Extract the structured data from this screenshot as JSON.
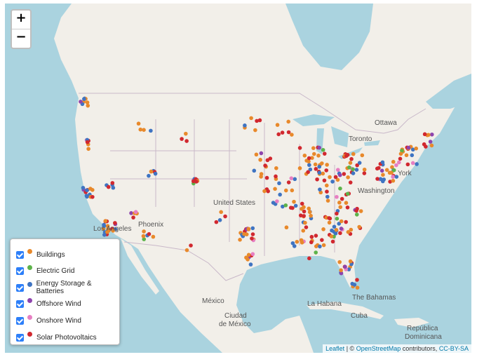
{
  "zoom": {
    "in": "+",
    "out": "−"
  },
  "legend": [
    {
      "label": "Buildings",
      "color": "#e8892b"
    },
    {
      "label": "Electric Grid",
      "color": "#5db34a"
    },
    {
      "label": "Energy Storage & Batteries",
      "color": "#3f74c2"
    },
    {
      "label": "Offshore Wind",
      "color": "#8e44ad"
    },
    {
      "label": "Onshore Wind",
      "color": "#e77fc2"
    },
    {
      "label": "Solar Photovoltaics",
      "color": "#d1282f"
    }
  ],
  "places": {
    "ottawa": "Ottawa",
    "toronto": "Toronto",
    "york": "York",
    "washington": "Washington",
    "united_states": "United States",
    "los_angeles": "Los Angeles",
    "phoenix": "Phoenix",
    "mexico": "México",
    "ciudad1": "Ciudad",
    "ciudad2": "de México",
    "habana": "La Habana",
    "bahamas": "The Bahamas",
    "cuba": "Cuba",
    "republica": "República",
    "dominicana": "Dominicana"
  },
  "attribution": {
    "leaflet": "Leaflet",
    "sep": "| ©",
    "osm": "OpenStreetMap",
    "text": "contributors,",
    "license": "CC-BY-SA"
  }
}
